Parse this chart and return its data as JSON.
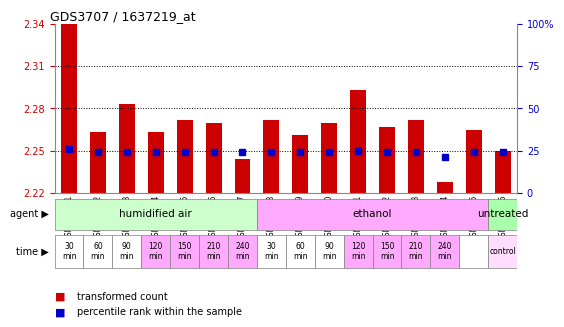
{
  "title": "GDS3707 / 1637219_at",
  "samples": [
    "GSM455231",
    "GSM455232",
    "GSM455233",
    "GSM455234",
    "GSM455235",
    "GSM455236",
    "GSM455237",
    "GSM455238",
    "GSM455239",
    "GSM455240",
    "GSM455241",
    "GSM455242",
    "GSM455243",
    "GSM455244",
    "GSM455245",
    "GSM455246"
  ],
  "bar_values": [
    2.34,
    2.263,
    2.283,
    2.263,
    2.272,
    2.27,
    2.244,
    2.272,
    2.261,
    2.27,
    2.293,
    2.267,
    2.272,
    2.228,
    2.265,
    2.25
  ],
  "percentile_values": [
    26,
    24,
    24,
    24,
    24,
    24,
    24,
    24,
    24,
    24,
    25,
    24,
    24,
    21,
    24,
    24
  ],
  "bar_color": "#cc0000",
  "percentile_color": "#0000cc",
  "ymin": 2.22,
  "ymax": 2.34,
  "yticks": [
    2.22,
    2.25,
    2.28,
    2.31,
    2.34
  ],
  "grid_lines": [
    2.25,
    2.28,
    2.31
  ],
  "right_ytick_pcts": [
    0,
    25,
    50,
    75,
    100
  ],
  "right_yticklabels": [
    "0",
    "25",
    "50",
    "75",
    "100%"
  ],
  "agent_groups": [
    {
      "label": "humidified air",
      "start": 0,
      "end": 7,
      "color": "#ccffcc"
    },
    {
      "label": "ethanol",
      "start": 7,
      "end": 15,
      "color": "#ffaaff"
    },
    {
      "label": "untreated",
      "start": 15,
      "end": 16,
      "color": "#aaffaa"
    }
  ],
  "time_labels": [
    "30\nmin",
    "60\nmin",
    "90\nmin",
    "120\nmin",
    "150\nmin",
    "210\nmin",
    "240\nmin",
    "30\nmin",
    "60\nmin",
    "90\nmin",
    "120\nmin",
    "150\nmin",
    "210\nmin",
    "240\nmin",
    "",
    "control"
  ],
  "time_colors": [
    "#ffffff",
    "#ffffff",
    "#ffffff",
    "#ffaaff",
    "#ffaaff",
    "#ffaaff",
    "#ffaaff",
    "#ffffff",
    "#ffffff",
    "#ffffff",
    "#ffaaff",
    "#ffaaff",
    "#ffaaff",
    "#ffaaff",
    "#ffffff",
    "#ffddff"
  ],
  "legend_items": [
    {
      "color": "#cc0000",
      "label": "transformed count"
    },
    {
      "color": "#0000cc",
      "label": "percentile rank within the sample"
    }
  ],
  "bar_width": 0.55,
  "percentile_marker_size": 4,
  "tick_color_left": "#cc0000",
  "tick_color_right": "#0000cc"
}
